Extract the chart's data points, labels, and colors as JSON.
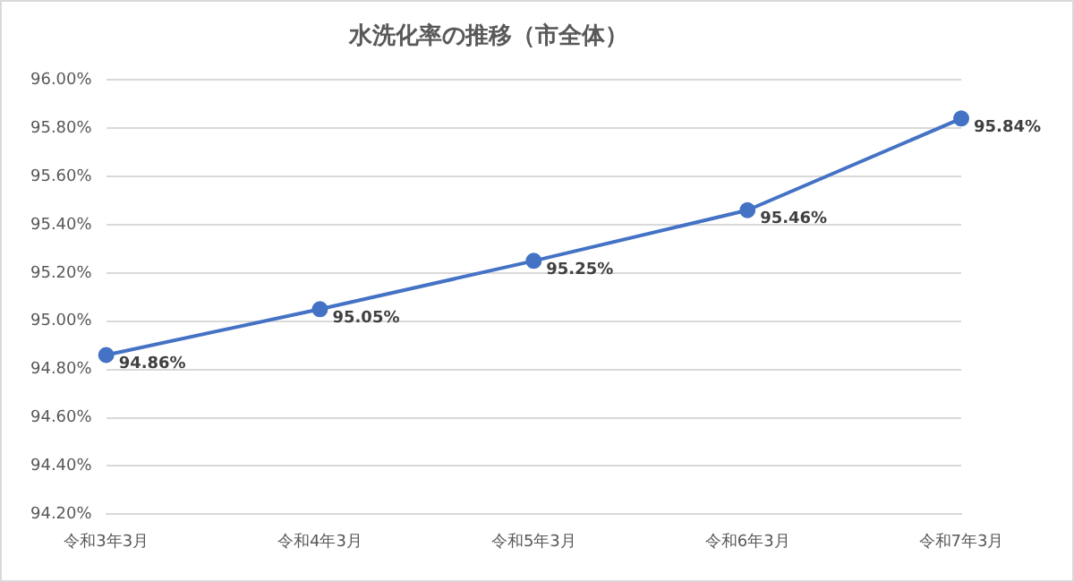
{
  "chart_data": {
    "type": "line",
    "title": "水洗化率の推移（市全体）",
    "categories": [
      "令和3年3月",
      "令和4年3月",
      "令和5年3月",
      "令和6年3月",
      "令和7年3月"
    ],
    "series": [
      {
        "color": "#4472c4",
        "values": [
          94.86,
          95.05,
          95.25,
          95.46,
          95.84
        ],
        "value_labels": [
          "94.86%",
          "95.05%",
          "95.25%",
          "95.46%",
          "95.84%"
        ]
      }
    ],
    "ylim": [
      94.2,
      96.0
    ],
    "yticks": [
      {
        "value": 94.2,
        "label": "94.20%"
      },
      {
        "value": 94.4,
        "label": "94.40%"
      },
      {
        "value": 94.6,
        "label": "94.60%"
      },
      {
        "value": 94.8,
        "label": "94.80%"
      },
      {
        "value": 95.0,
        "label": "95.00%"
      },
      {
        "value": 95.2,
        "label": "95.20%"
      },
      {
        "value": 95.4,
        "label": "95.40%"
      },
      {
        "value": 95.6,
        "label": "95.60%"
      },
      {
        "value": 95.8,
        "label": "95.80%"
      },
      {
        "value": 96.0,
        "label": "96.00%"
      }
    ],
    "grid": "y",
    "legend": false,
    "marker": "circle",
    "line_style": "solid"
  }
}
